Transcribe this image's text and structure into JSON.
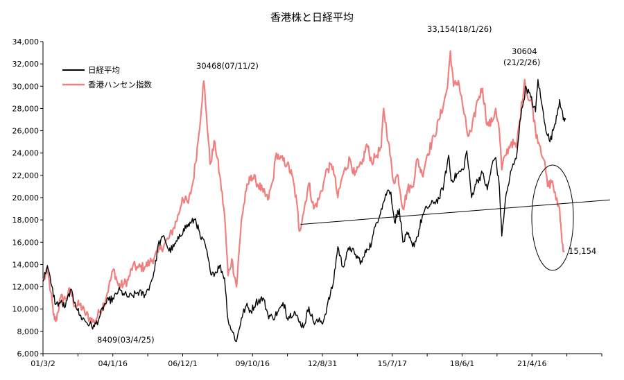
{
  "chart_data": {
    "type": "line",
    "title": "香港株と日経平均",
    "xlabel": "",
    "ylabel": "",
    "ylim": [
      6000,
      34000
    ],
    "yticks": [
      "6,000",
      "8,000",
      "10,000",
      "12,000",
      "14,000",
      "16,000",
      "18,000",
      "20,000",
      "22,000",
      "24,000",
      "26,000",
      "28,000",
      "30,000",
      "32,000",
      "34,000"
    ],
    "xticks": [
      "01/3/2",
      "04/1/16",
      "06/12/1",
      "09/10/16",
      "12/8/31",
      "15/7/17",
      "18/6/1",
      "21/4/16"
    ],
    "legend_placement": "top-left",
    "grid": false,
    "series": [
      {
        "name": "日経平均",
        "color": "#000000",
        "points": [
          [
            2001.17,
            12500
          ],
          [
            2001.35,
            13900
          ],
          [
            2001.5,
            12300
          ],
          [
            2001.7,
            10400
          ],
          [
            2001.9,
            10600
          ],
          [
            2002.1,
            10200
          ],
          [
            2002.3,
            11700
          ],
          [
            2002.5,
            10600
          ],
          [
            2002.7,
            9400
          ],
          [
            2002.9,
            9000
          ],
          [
            2003.1,
            8600
          ],
          [
            2003.3,
            8409
          ],
          [
            2003.5,
            9200
          ],
          [
            2003.7,
            10300
          ],
          [
            2003.9,
            10800
          ],
          [
            2004.1,
            10900
          ],
          [
            2004.3,
            11700
          ],
          [
            2004.5,
            11400
          ],
          [
            2004.7,
            11100
          ],
          [
            2004.9,
            11200
          ],
          [
            2005.1,
            11500
          ],
          [
            2005.4,
            11300
          ],
          [
            2005.6,
            12100
          ],
          [
            2005.8,
            13500
          ],
          [
            2005.95,
            15800
          ],
          [
            2006.2,
            16500
          ],
          [
            2006.4,
            15200
          ],
          [
            2006.6,
            15600
          ],
          [
            2006.8,
            16300
          ],
          [
            2007.0,
            17200
          ],
          [
            2007.3,
            17700
          ],
          [
            2007.5,
            18100
          ],
          [
            2007.7,
            16400
          ],
          [
            2007.9,
            15800
          ],
          [
            2008.1,
            13500
          ],
          [
            2008.3,
            13200
          ],
          [
            2008.5,
            13900
          ],
          [
            2008.7,
            12800
          ],
          [
            2008.85,
            9000
          ],
          [
            2009.0,
            8100
          ],
          [
            2009.2,
            7100
          ],
          [
            2009.4,
            9200
          ],
          [
            2009.6,
            10300
          ],
          [
            2009.8,
            9800
          ],
          [
            2010.0,
            10600
          ],
          [
            2010.3,
            11000
          ],
          [
            2010.5,
            9500
          ],
          [
            2010.7,
            9200
          ],
          [
            2010.9,
            9700
          ],
          [
            2011.1,
            10300
          ],
          [
            2011.2,
            10400
          ],
          [
            2011.3,
            9200
          ],
          [
            2011.6,
            9800
          ],
          [
            2011.8,
            8800
          ],
          [
            2012.0,
            8500
          ],
          [
            2012.2,
            10200
          ],
          [
            2012.4,
            8800
          ],
          [
            2012.6,
            8900
          ],
          [
            2012.8,
            8900
          ],
          [
            2012.95,
            10200
          ],
          [
            2013.2,
            12200
          ],
          [
            2013.4,
            15600
          ],
          [
            2013.6,
            13800
          ],
          [
            2013.9,
            15600
          ],
          [
            2014.1,
            14900
          ],
          [
            2014.4,
            14200
          ],
          [
            2014.6,
            15400
          ],
          [
            2014.8,
            15900
          ],
          [
            2014.95,
            17400
          ],
          [
            2015.2,
            19000
          ],
          [
            2015.45,
            20600
          ],
          [
            2015.6,
            20500
          ],
          [
            2015.75,
            17800
          ],
          [
            2015.95,
            19000
          ],
          [
            2016.1,
            16000
          ],
          [
            2016.3,
            16700
          ],
          [
            2016.5,
            15600
          ],
          [
            2016.7,
            16500
          ],
          [
            2016.9,
            18300
          ],
          [
            2017.1,
            19100
          ],
          [
            2017.4,
            19600
          ],
          [
            2017.6,
            19900
          ],
          [
            2017.8,
            21200
          ],
          [
            2018.0,
            23800
          ],
          [
            2018.1,
            21500
          ],
          [
            2018.4,
            22200
          ],
          [
            2018.6,
            22500
          ],
          [
            2018.75,
            24200
          ],
          [
            2018.95,
            20000
          ],
          [
            2019.1,
            21200
          ],
          [
            2019.4,
            22200
          ],
          [
            2019.6,
            20700
          ],
          [
            2019.8,
            23000
          ],
          [
            2019.95,
            23600
          ],
          [
            2020.1,
            21000
          ],
          [
            2020.2,
            16550
          ],
          [
            2020.35,
            19800
          ],
          [
            2020.6,
            22500
          ],
          [
            2020.8,
            23500
          ],
          [
            2020.95,
            26800
          ],
          [
            2021.1,
            28600
          ],
          [
            2021.2,
            30000
          ],
          [
            2021.4,
            29000
          ],
          [
            2021.6,
            27700
          ],
          [
            2021.7,
            30600
          ],
          [
            2021.85,
            28500
          ],
          [
            2022.0,
            26500
          ],
          [
            2022.2,
            25000
          ],
          [
            2022.4,
            26600
          ],
          [
            2022.6,
            28800
          ],
          [
            2022.75,
            27000
          ],
          [
            2022.85,
            27000
          ]
        ]
      },
      {
        "name": "香港ハンセン指数",
        "color": "#f08080",
        "points": [
          [
            2001.17,
            12500
          ],
          [
            2001.35,
            13400
          ],
          [
            2001.5,
            11500
          ],
          [
            2001.6,
            9500
          ],
          [
            2001.7,
            8900
          ],
          [
            2001.9,
            11000
          ],
          [
            2002.1,
            10900
          ],
          [
            2002.3,
            11700
          ],
          [
            2002.5,
            10300
          ],
          [
            2002.7,
            10400
          ],
          [
            2002.9,
            9700
          ],
          [
            2003.1,
            9200
          ],
          [
            2003.3,
            8800
          ],
          [
            2003.5,
            9700
          ],
          [
            2003.7,
            10500
          ],
          [
            2003.9,
            12000
          ],
          [
            2004.1,
            13600
          ],
          [
            2004.3,
            12100
          ],
          [
            2004.5,
            12200
          ],
          [
            2004.7,
            12600
          ],
          [
            2004.9,
            13900
          ],
          [
            2005.1,
            13700
          ],
          [
            2005.4,
            13800
          ],
          [
            2005.6,
            14200
          ],
          [
            2005.8,
            14700
          ],
          [
            2005.95,
            15100
          ],
          [
            2006.2,
            15800
          ],
          [
            2006.4,
            16400
          ],
          [
            2006.6,
            17300
          ],
          [
            2006.8,
            18500
          ],
          [
            2006.95,
            20000
          ],
          [
            2007.2,
            19500
          ],
          [
            2007.4,
            21500
          ],
          [
            2007.6,
            25000
          ],
          [
            2007.84,
            30468
          ],
          [
            2007.95,
            27500
          ],
          [
            2008.1,
            23000
          ],
          [
            2008.3,
            25000
          ],
          [
            2008.5,
            22000
          ],
          [
            2008.7,
            18500
          ],
          [
            2008.85,
            13000
          ],
          [
            2009.0,
            14500
          ],
          [
            2009.2,
            12000
          ],
          [
            2009.4,
            18000
          ],
          [
            2009.6,
            20600
          ],
          [
            2009.8,
            22000
          ],
          [
            2010.0,
            21500
          ],
          [
            2010.3,
            20500
          ],
          [
            2010.5,
            19800
          ],
          [
            2010.7,
            21500
          ],
          [
            2010.85,
            24000
          ],
          [
            2011.0,
            23500
          ],
          [
            2011.3,
            23000
          ],
          [
            2011.5,
            22000
          ],
          [
            2011.7,
            19500
          ],
          [
            2011.8,
            17000
          ],
          [
            2011.95,
            18400
          ],
          [
            2012.2,
            21300
          ],
          [
            2012.4,
            19000
          ],
          [
            2012.6,
            19800
          ],
          [
            2012.8,
            21200
          ],
          [
            2012.95,
            22600
          ],
          [
            2013.2,
            22800
          ],
          [
            2013.4,
            20000
          ],
          [
            2013.6,
            22000
          ],
          [
            2013.9,
            23500
          ],
          [
            2014.1,
            22000
          ],
          [
            2014.4,
            23000
          ],
          [
            2014.6,
            24800
          ],
          [
            2014.8,
            23200
          ],
          [
            2014.95,
            23600
          ],
          [
            2015.2,
            24500
          ],
          [
            2015.3,
            28000
          ],
          [
            2015.5,
            25000
          ],
          [
            2015.7,
            21500
          ],
          [
            2015.9,
            22000
          ],
          [
            2016.1,
            19000
          ],
          [
            2016.3,
            20800
          ],
          [
            2016.5,
            21000
          ],
          [
            2016.7,
            23500
          ],
          [
            2016.9,
            22000
          ],
          [
            2017.1,
            23800
          ],
          [
            2017.4,
            25500
          ],
          [
            2017.6,
            27000
          ],
          [
            2017.8,
            28500
          ],
          [
            2017.95,
            30000
          ],
          [
            2018.07,
            33154
          ],
          [
            2018.2,
            30000
          ],
          [
            2018.4,
            30500
          ],
          [
            2018.6,
            28000
          ],
          [
            2018.8,
            25500
          ],
          [
            2018.95,
            26000
          ],
          [
            2019.2,
            28800
          ],
          [
            2019.4,
            29800
          ],
          [
            2019.6,
            26500
          ],
          [
            2019.8,
            26800
          ],
          [
            2019.95,
            28000
          ],
          [
            2020.1,
            26000
          ],
          [
            2020.2,
            22500
          ],
          [
            2020.35,
            23800
          ],
          [
            2020.6,
            25000
          ],
          [
            2020.8,
            24500
          ],
          [
            2020.95,
            27000
          ],
          [
            2021.15,
            30604
          ],
          [
            2021.3,
            28800
          ],
          [
            2021.45,
            28500
          ],
          [
            2021.6,
            26000
          ],
          [
            2021.8,
            24600
          ],
          [
            2021.95,
            23400
          ],
          [
            2022.1,
            21000
          ],
          [
            2022.3,
            21500
          ],
          [
            2022.45,
            19800
          ],
          [
            2022.6,
            19000
          ],
          [
            2022.7,
            16000
          ],
          [
            2022.8,
            15154
          ]
        ]
      }
    ],
    "annotations": [
      {
        "text": "8409(03/4/25)"
      },
      {
        "text": "30468(07/11/2)"
      },
      {
        "text": "33,154(18/1/26)"
      },
      {
        "text": "30604"
      },
      {
        "text": "(21/2/26)"
      },
      {
        "text": "15,154"
      }
    ],
    "trendline": {
      "from": [
        2011.85,
        17600
      ],
      "to": [
        2024.0,
        19800
      ]
    }
  }
}
